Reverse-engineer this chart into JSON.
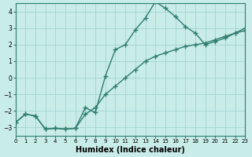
{
  "xlabel": "Humidex (Indice chaleur)",
  "ylabel": "",
  "xlim": [
    0,
    23
  ],
  "ylim": [
    -3.5,
    4.5
  ],
  "yticks": [
    -3,
    -2,
    -1,
    0,
    1,
    2,
    3,
    4
  ],
  "xticks": [
    0,
    1,
    2,
    3,
    4,
    5,
    6,
    7,
    8,
    9,
    10,
    11,
    12,
    13,
    14,
    15,
    16,
    17,
    18,
    19,
    20,
    21,
    22,
    23
  ],
  "line_color": "#2e7d6e",
  "background_color": "#c8ece8",
  "grid_color": "#9ecfca",
  "line1_x": [
    0,
    1,
    2,
    3,
    4,
    5,
    6,
    7,
    8,
    9,
    10,
    11,
    12,
    13,
    14,
    15,
    16,
    17,
    18,
    19,
    20,
    21,
    22,
    23
  ],
  "line1_y": [
    -2.7,
    -2.2,
    -2.3,
    -3.1,
    -3.05,
    -3.1,
    -3.05,
    -1.8,
    -2.1,
    0.1,
    1.7,
    2.0,
    2.9,
    3.6,
    4.6,
    4.2,
    3.7,
    3.1,
    2.7,
    2.0,
    2.2,
    2.4,
    2.7,
    3.0
  ],
  "line2_x": [
    0,
    1,
    2,
    3,
    4,
    5,
    6,
    7,
    8,
    9,
    10,
    11,
    12,
    13,
    14,
    15,
    16,
    17,
    18,
    19,
    20,
    21,
    22,
    23
  ],
  "line2_y": [
    -2.7,
    -2.2,
    -2.3,
    -3.1,
    -3.05,
    -3.1,
    -3.05,
    -2.2,
    -1.8,
    -1.0,
    -0.5,
    0.0,
    0.5,
    1.0,
    1.3,
    1.5,
    1.7,
    1.9,
    2.0,
    2.1,
    2.3,
    2.5,
    2.7,
    2.85
  ]
}
